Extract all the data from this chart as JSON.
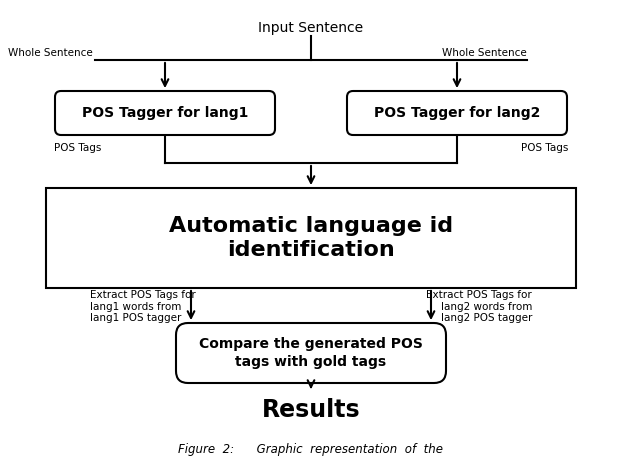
{
  "title": "Input Sentence",
  "box_lang1": "POS Tagger for lang1",
  "box_lang2": "POS Tagger for lang2",
  "box_auto": "Automatic language id\nidentification",
  "box_compare": "Compare the generated POS\ntags with gold tags",
  "box_results": "Results",
  "label_whole_sent_left": "Whole Sentence",
  "label_whole_sent_right": "Whole Sentence",
  "label_pos_tags_left": "POS Tags",
  "label_pos_tags_right": "POS Tags",
  "label_extract_left": "Extract POS Tags for\nlang1 words from\nlang1 POS tagger",
  "label_extract_right": "Extract POS Tags for\nlang2 words from\nlang2 POS tagger",
  "bg_color": "#ffffff",
  "box_edge_color": "#000000",
  "arrow_color": "#000000",
  "text_color": "#000000",
  "results_color": "#000000",
  "fig_caption": "Figure  2:      Graphic  representation  of  the"
}
